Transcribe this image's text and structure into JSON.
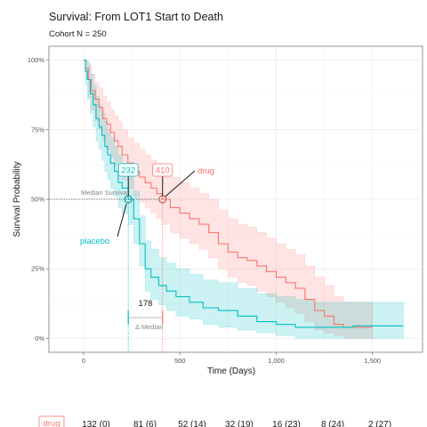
{
  "chart_data": {
    "type": "line",
    "title": "Survival: From LOT1 Start to Death",
    "subtitle": "Cohort N = 250",
    "xlabel": "Time (Days)",
    "ylabel": "Survival Probability",
    "xlim": [
      -180,
      1760
    ],
    "ylim": [
      -0.05,
      1.05
    ],
    "x_ticks": [
      0,
      500,
      1000,
      1500
    ],
    "x_tick_labels": [
      "0",
      "500",
      "1,000",
      "1,500"
    ],
    "y_ticks": [
      0,
      0.25,
      0.5,
      0.75,
      1.0
    ],
    "y_tick_labels": [
      "0%",
      "25%",
      "50%",
      "75%",
      "100%"
    ],
    "grid": true,
    "legend": "none",
    "series": [
      {
        "name": "drug",
        "color": "#F8766D",
        "median": 410,
        "median_label": "410",
        "label": "drug",
        "points": [
          [
            0,
            1.0
          ],
          [
            10,
            0.97
          ],
          [
            25,
            0.93
          ],
          [
            40,
            0.89
          ],
          [
            60,
            0.86
          ],
          [
            80,
            0.83
          ],
          [
            100,
            0.79
          ],
          [
            120,
            0.77
          ],
          [
            140,
            0.74
          ],
          [
            160,
            0.71
          ],
          [
            180,
            0.69
          ],
          [
            200,
            0.66
          ],
          [
            230,
            0.63
          ],
          [
            260,
            0.6
          ],
          [
            290,
            0.58
          ],
          [
            320,
            0.56
          ],
          [
            350,
            0.54
          ],
          [
            380,
            0.52
          ],
          [
            410,
            0.5
          ],
          [
            450,
            0.47
          ],
          [
            500,
            0.45
          ],
          [
            550,
            0.43
          ],
          [
            600,
            0.41
          ],
          [
            650,
            0.38
          ],
          [
            700,
            0.34
          ],
          [
            750,
            0.31
          ],
          [
            800,
            0.29
          ],
          [
            850,
            0.28
          ],
          [
            900,
            0.26
          ],
          [
            950,
            0.24
          ],
          [
            1000,
            0.22
          ],
          [
            1050,
            0.2
          ],
          [
            1100,
            0.18
          ],
          [
            1150,
            0.14
          ],
          [
            1200,
            0.1
          ],
          [
            1250,
            0.08
          ],
          [
            1300,
            0.05
          ],
          [
            1350,
            0.04
          ],
          [
            1400,
            0.04
          ],
          [
            1500,
            0.04
          ]
        ],
        "ci_upper": [
          [
            0,
            1.0
          ],
          [
            10,
            1.0
          ],
          [
            25,
            0.98
          ],
          [
            40,
            0.95
          ],
          [
            60,
            0.92
          ],
          [
            80,
            0.9
          ],
          [
            100,
            0.87
          ],
          [
            120,
            0.85
          ],
          [
            140,
            0.82
          ],
          [
            160,
            0.8
          ],
          [
            180,
            0.78
          ],
          [
            200,
            0.75
          ],
          [
            230,
            0.72
          ],
          [
            260,
            0.7
          ],
          [
            290,
            0.68
          ],
          [
            320,
            0.66
          ],
          [
            350,
            0.64
          ],
          [
            380,
            0.62
          ],
          [
            410,
            0.6
          ],
          [
            450,
            0.58
          ],
          [
            500,
            0.56
          ],
          [
            550,
            0.54
          ],
          [
            600,
            0.52
          ],
          [
            650,
            0.5
          ],
          [
            700,
            0.46
          ],
          [
            750,
            0.43
          ],
          [
            800,
            0.41
          ],
          [
            850,
            0.4
          ],
          [
            900,
            0.38
          ],
          [
            950,
            0.36
          ],
          [
            1000,
            0.34
          ],
          [
            1050,
            0.32
          ],
          [
            1100,
            0.3
          ],
          [
            1150,
            0.26
          ],
          [
            1200,
            0.22
          ],
          [
            1250,
            0.19
          ],
          [
            1300,
            0.15
          ],
          [
            1350,
            0.13
          ],
          [
            1400,
            0.13
          ],
          [
            1500,
            0.13
          ]
        ],
        "ci_lower": [
          [
            0,
            1.0
          ],
          [
            10,
            0.93
          ],
          [
            25,
            0.87
          ],
          [
            40,
            0.82
          ],
          [
            60,
            0.78
          ],
          [
            80,
            0.75
          ],
          [
            100,
            0.71
          ],
          [
            120,
            0.68
          ],
          [
            140,
            0.65
          ],
          [
            160,
            0.62
          ],
          [
            180,
            0.6
          ],
          [
            200,
            0.57
          ],
          [
            230,
            0.54
          ],
          [
            260,
            0.51
          ],
          [
            290,
            0.49
          ],
          [
            320,
            0.47
          ],
          [
            350,
            0.45
          ],
          [
            380,
            0.43
          ],
          [
            410,
            0.41
          ],
          [
            450,
            0.38
          ],
          [
            500,
            0.36
          ],
          [
            550,
            0.34
          ],
          [
            600,
            0.32
          ],
          [
            650,
            0.29
          ],
          [
            700,
            0.25
          ],
          [
            750,
            0.22
          ],
          [
            800,
            0.2
          ],
          [
            850,
            0.19
          ],
          [
            900,
            0.17
          ],
          [
            950,
            0.15
          ],
          [
            1000,
            0.13
          ],
          [
            1050,
            0.11
          ],
          [
            1100,
            0.09
          ],
          [
            1150,
            0.06
          ],
          [
            1200,
            0.03
          ],
          [
            1250,
            0.02
          ],
          [
            1300,
            0.01
          ],
          [
            1350,
            0.0
          ],
          [
            1400,
            0.0
          ],
          [
            1500,
            0.0
          ]
        ]
      },
      {
        "name": "placebo",
        "color": "#00BFC4",
        "median": 232,
        "median_label": "232",
        "label": "placebo",
        "points": [
          [
            0,
            1.0
          ],
          [
            10,
            0.96
          ],
          [
            20,
            0.93
          ],
          [
            35,
            0.88
          ],
          [
            50,
            0.84
          ],
          [
            65,
            0.79
          ],
          [
            80,
            0.76
          ],
          [
            95,
            0.73
          ],
          [
            110,
            0.69
          ],
          [
            125,
            0.66
          ],
          [
            140,
            0.63
          ],
          [
            160,
            0.6
          ],
          [
            180,
            0.56
          ],
          [
            200,
            0.54
          ],
          [
            232,
            0.5
          ],
          [
            260,
            0.43
          ],
          [
            290,
            0.34
          ],
          [
            320,
            0.25
          ],
          [
            350,
            0.22
          ],
          [
            390,
            0.19
          ],
          [
            430,
            0.17
          ],
          [
            480,
            0.15
          ],
          [
            550,
            0.13
          ],
          [
            620,
            0.11
          ],
          [
            700,
            0.1
          ],
          [
            800,
            0.08
          ],
          [
            900,
            0.06
          ],
          [
            1000,
            0.05
          ],
          [
            1100,
            0.04
          ],
          [
            1200,
            0.04
          ],
          [
            1400,
            0.045
          ],
          [
            1660,
            0.045
          ]
        ],
        "ci_upper": [
          [
            0,
            1.0
          ],
          [
            10,
            1.0
          ],
          [
            20,
            0.99
          ],
          [
            35,
            0.95
          ],
          [
            50,
            0.91
          ],
          [
            65,
            0.87
          ],
          [
            80,
            0.84
          ],
          [
            95,
            0.81
          ],
          [
            110,
            0.78
          ],
          [
            125,
            0.75
          ],
          [
            140,
            0.72
          ],
          [
            160,
            0.69
          ],
          [
            180,
            0.66
          ],
          [
            200,
            0.63
          ],
          [
            232,
            0.6
          ],
          [
            260,
            0.53
          ],
          [
            290,
            0.44
          ],
          [
            320,
            0.35
          ],
          [
            350,
            0.32
          ],
          [
            390,
            0.29
          ],
          [
            430,
            0.27
          ],
          [
            480,
            0.25
          ],
          [
            550,
            0.23
          ],
          [
            620,
            0.21
          ],
          [
            700,
            0.2
          ],
          [
            800,
            0.18
          ],
          [
            900,
            0.16
          ],
          [
            1000,
            0.15
          ],
          [
            1100,
            0.14
          ],
          [
            1200,
            0.13
          ],
          [
            1400,
            0.13
          ],
          [
            1660,
            0.13
          ]
        ],
        "ci_lower": [
          [
            0,
            1.0
          ],
          [
            10,
            0.91
          ],
          [
            20,
            0.86
          ],
          [
            35,
            0.81
          ],
          [
            50,
            0.76
          ],
          [
            65,
            0.71
          ],
          [
            80,
            0.68
          ],
          [
            95,
            0.64
          ],
          [
            110,
            0.6
          ],
          [
            125,
            0.57
          ],
          [
            140,
            0.54
          ],
          [
            160,
            0.51
          ],
          [
            180,
            0.47
          ],
          [
            200,
            0.45
          ],
          [
            232,
            0.41
          ],
          [
            260,
            0.34
          ],
          [
            290,
            0.26
          ],
          [
            320,
            0.17
          ],
          [
            350,
            0.14
          ],
          [
            390,
            0.12
          ],
          [
            430,
            0.1
          ],
          [
            480,
            0.08
          ],
          [
            550,
            0.07
          ],
          [
            620,
            0.05
          ],
          [
            700,
            0.04
          ],
          [
            800,
            0.03
          ],
          [
            900,
            0.02
          ],
          [
            1000,
            0.01
          ],
          [
            1100,
            0.0
          ],
          [
            1200,
            0.0
          ],
          [
            1400,
            0.0
          ],
          [
            1660,
            0.0
          ]
        ]
      }
    ],
    "annotations": {
      "median_survival": "Median Survival",
      "median_diff_value": "178",
      "median_diff_label": "Median"
    },
    "risk_table": {
      "group": "drug",
      "color": "#F8766D",
      "values": [
        "132 (0)",
        "81 (6)",
        "52 (14)",
        "32 (19)",
        "16 (23)",
        "8 (24)",
        "2 (27)"
      ]
    }
  }
}
